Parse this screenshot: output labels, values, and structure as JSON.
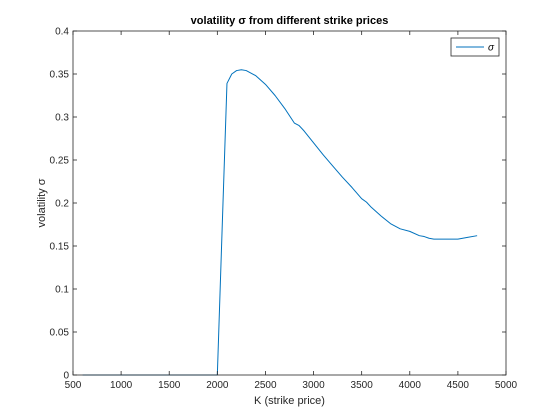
{
  "chart_data": {
    "type": "line",
    "title": "volatility σ from different strike prices",
    "xlabel": "K (strike price)",
    "ylabel": "volatility σ",
    "xlim": [
      500,
      5000
    ],
    "ylim": [
      0,
      0.4
    ],
    "xticks": [
      500,
      1000,
      1500,
      2000,
      2500,
      3000,
      3500,
      4000,
      4500,
      5000
    ],
    "yticks": [
      0,
      0.05,
      0.1,
      0.15,
      0.2,
      0.25,
      0.3,
      0.35,
      0.4
    ],
    "xtick_labels": [
      "500",
      "1000",
      "1500",
      "2000",
      "2500",
      "3000",
      "3500",
      "4000",
      "4500",
      "5000"
    ],
    "ytick_labels": [
      "0",
      "0.05",
      "0.1",
      "0.15",
      "0.2",
      "0.25",
      "0.3",
      "0.35",
      "0.4"
    ],
    "grid": false,
    "legend": {
      "placement": "top-right"
    },
    "series": [
      {
        "name": "σ",
        "color": "#0072bd",
        "x": [
          600,
          1000,
          1500,
          1950,
          2000,
          2050,
          2100,
          2150,
          2200,
          2250,
          2300,
          2400,
          2500,
          2600,
          2700,
          2800,
          2850,
          2900,
          3000,
          3100,
          3200,
          3300,
          3400,
          3500,
          3550,
          3600,
          3700,
          3800,
          3900,
          4000,
          4100,
          4150,
          4200,
          4250,
          4300,
          4400,
          4500,
          4600,
          4700
        ],
        "y": [
          0,
          0,
          0,
          0,
          0,
          0.17,
          0.339,
          0.35,
          0.354,
          0.355,
          0.354,
          0.348,
          0.338,
          0.325,
          0.31,
          0.293,
          0.29,
          0.284,
          0.27,
          0.256,
          0.243,
          0.23,
          0.218,
          0.205,
          0.201,
          0.195,
          0.185,
          0.176,
          0.17,
          0.167,
          0.162,
          0.161,
          0.159,
          0.158,
          0.158,
          0.158,
          0.158,
          0.16,
          0.162
        ]
      }
    ]
  }
}
